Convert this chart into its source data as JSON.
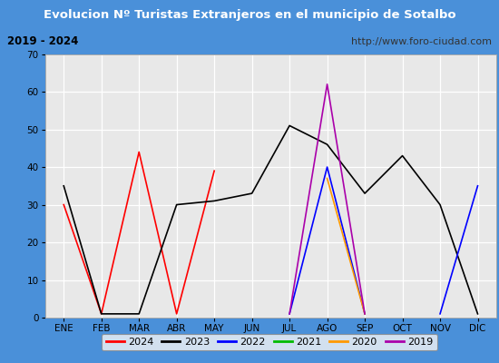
{
  "title": "Evolucion Nº Turistas Extranjeros en el municipio de Sotalbo",
  "subtitle_left": "2019 - 2024",
  "subtitle_right": "http://www.foro-ciudad.com",
  "months": [
    "ENE",
    "FEB",
    "MAR",
    "ABR",
    "MAY",
    "JUN",
    "JUL",
    "AGO",
    "SEP",
    "OCT",
    "NOV",
    "DIC"
  ],
  "ylim": [
    0,
    70
  ],
  "yticks": [
    0,
    10,
    20,
    30,
    40,
    50,
    60,
    70
  ],
  "series": {
    "2024": {
      "color": "#ff0000",
      "data": [
        30,
        1,
        44,
        1,
        39,
        null,
        null,
        null,
        null,
        null,
        null,
        null
      ]
    },
    "2023": {
      "color": "#000000",
      "data": [
        35,
        1,
        1,
        30,
        31,
        33,
        51,
        46,
        33,
        43,
        30,
        1
      ]
    },
    "2022": {
      "color": "#0000ff",
      "data": [
        null,
        null,
        null,
        null,
        null,
        null,
        1,
        40,
        1,
        null,
        1,
        35
      ]
    },
    "2021": {
      "color": "#00bb00",
      "data": [
        null,
        null,
        null,
        null,
        null,
        null,
        null,
        null,
        null,
        null,
        null,
        null
      ]
    },
    "2020": {
      "color": "#ff9900",
      "data": [
        null,
        null,
        null,
        null,
        null,
        null,
        null,
        37,
        1,
        null,
        null,
        null
      ]
    },
    "2019": {
      "color": "#aa00aa",
      "data": [
        null,
        null,
        null,
        null,
        null,
        null,
        1,
        62,
        1,
        null,
        null,
        null
      ]
    }
  },
  "title_bg_color": "#4a90d9",
  "title_text_color": "#ffffff",
  "subtitle_bg_color": "#f5f5f5",
  "subtitle_text_color": "#000000",
  "plot_bg_color": "#e8e8e8",
  "grid_color": "#ffffff",
  "outer_border_color": "#4a90d9",
  "legend_order": [
    "2024",
    "2023",
    "2022",
    "2021",
    "2020",
    "2019"
  ]
}
